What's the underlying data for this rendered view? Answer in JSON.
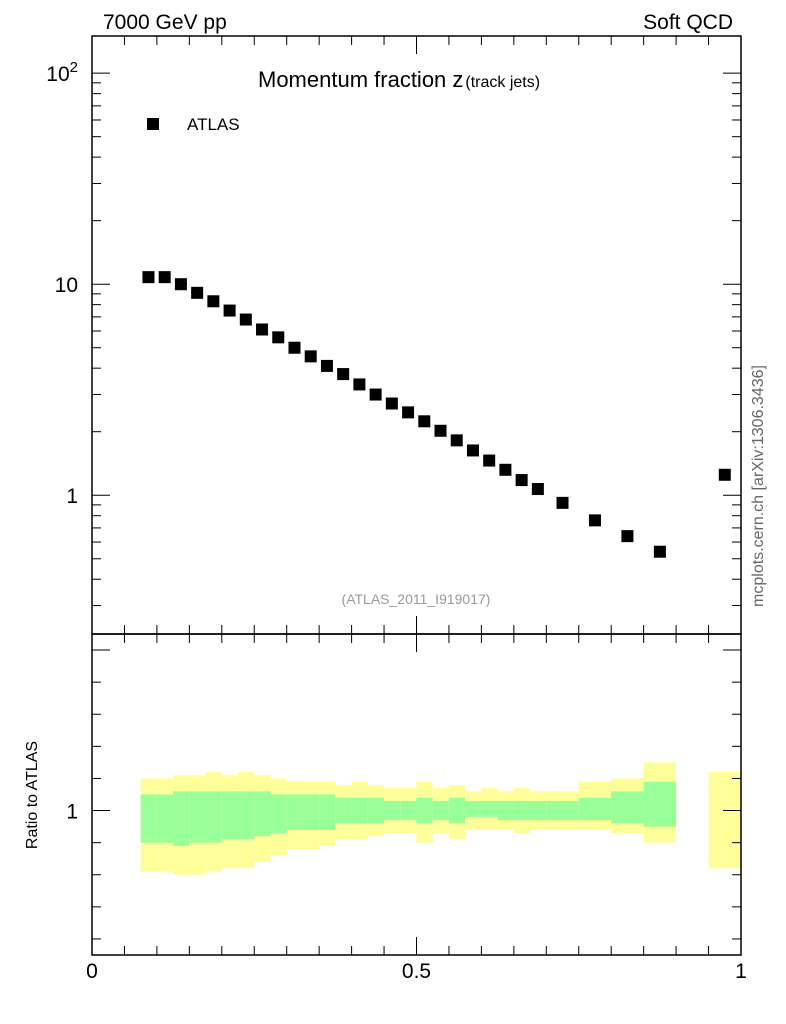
{
  "header": {
    "left": "7000 GeV pp",
    "right": "Soft QCD"
  },
  "side_label": "mcplots.cern.ch [arXiv:1306.3436]",
  "chart_data": [
    {
      "type": "scatter",
      "title_main": "Momentum fraction z",
      "title_sub": "(track jets)",
      "watermark": "(ATLAS_2011_I919017)",
      "legend": {
        "position": "top-left",
        "entries": [
          "ATLAS"
        ]
      },
      "y_scale": "log",
      "ylim": [
        0.22,
        150
      ],
      "xlim": [
        0,
        1
      ],
      "y_ticks": [
        {
          "value": 1,
          "label": "1"
        },
        {
          "value": 10,
          "label": "10"
        },
        {
          "value": 100,
          "label": "10",
          "exp": "2"
        }
      ],
      "series": [
        {
          "name": "ATLAS",
          "x": [
            0.087,
            0.112,
            0.137,
            0.162,
            0.187,
            0.212,
            0.237,
            0.262,
            0.287,
            0.312,
            0.337,
            0.362,
            0.387,
            0.412,
            0.437,
            0.462,
            0.487,
            0.512,
            0.537,
            0.562,
            0.587,
            0.612,
            0.637,
            0.662,
            0.687,
            0.725,
            0.775,
            0.825,
            0.875,
            0.975
          ],
          "y": [
            10.8,
            10.8,
            10.0,
            9.1,
            8.3,
            7.5,
            6.8,
            6.1,
            5.6,
            5.0,
            4.55,
            4.1,
            3.75,
            3.35,
            3.0,
            2.72,
            2.47,
            2.24,
            2.02,
            1.82,
            1.63,
            1.46,
            1.32,
            1.18,
            1.07,
            0.92,
            0.76,
            0.64,
            0.54,
            1.25
          ]
        }
      ]
    },
    {
      "type": "area",
      "ylabel": "Ratio to ATLAS",
      "xlabel": "",
      "xlim": [
        0,
        1
      ],
      "ylim": [
        0.55,
        1.55
      ],
      "x_ticks": [
        {
          "value": 0,
          "label": "0"
        },
        {
          "value": 0.5,
          "label": "0.5"
        },
        {
          "value": 1,
          "label": "1"
        }
      ],
      "y_ticks": [
        {
          "value": 1,
          "label": "1"
        }
      ],
      "band_colors": {
        "stat": "#99ff99",
        "total": "#ffff99"
      },
      "bins": [
        {
          "x0": 0.075,
          "x1": 0.1,
          "total_lo": 0.81,
          "total_hi": 1.1,
          "stat_lo": 0.9,
          "stat_hi": 1.05
        },
        {
          "x0": 0.1,
          "x1": 0.125,
          "total_lo": 0.81,
          "total_hi": 1.1,
          "stat_lo": 0.9,
          "stat_hi": 1.05
        },
        {
          "x0": 0.125,
          "x1": 0.15,
          "total_lo": 0.8,
          "total_hi": 1.11,
          "stat_lo": 0.89,
          "stat_hi": 1.06
        },
        {
          "x0": 0.15,
          "x1": 0.175,
          "total_lo": 0.8,
          "total_hi": 1.11,
          "stat_lo": 0.9,
          "stat_hi": 1.06
        },
        {
          "x0": 0.175,
          "x1": 0.2,
          "total_lo": 0.81,
          "total_hi": 1.12,
          "stat_lo": 0.9,
          "stat_hi": 1.06
        },
        {
          "x0": 0.2,
          "x1": 0.225,
          "total_lo": 0.82,
          "total_hi": 1.11,
          "stat_lo": 0.91,
          "stat_hi": 1.06
        },
        {
          "x0": 0.225,
          "x1": 0.25,
          "total_lo": 0.82,
          "total_hi": 1.12,
          "stat_lo": 0.91,
          "stat_hi": 1.06
        },
        {
          "x0": 0.25,
          "x1": 0.275,
          "total_lo": 0.84,
          "total_hi": 1.11,
          "stat_lo": 0.92,
          "stat_hi": 1.06
        },
        {
          "x0": 0.275,
          "x1": 0.3,
          "total_lo": 0.86,
          "total_hi": 1.1,
          "stat_lo": 0.93,
          "stat_hi": 1.05
        },
        {
          "x0": 0.3,
          "x1": 0.325,
          "total_lo": 0.88,
          "total_hi": 1.09,
          "stat_lo": 0.94,
          "stat_hi": 1.05
        },
        {
          "x0": 0.325,
          "x1": 0.35,
          "total_lo": 0.88,
          "total_hi": 1.09,
          "stat_lo": 0.94,
          "stat_hi": 1.05
        },
        {
          "x0": 0.35,
          "x1": 0.375,
          "total_lo": 0.89,
          "total_hi": 1.09,
          "stat_lo": 0.94,
          "stat_hi": 1.05
        },
        {
          "x0": 0.375,
          "x1": 0.4,
          "total_lo": 0.91,
          "total_hi": 1.08,
          "stat_lo": 0.96,
          "stat_hi": 1.04
        },
        {
          "x0": 0.4,
          "x1": 0.425,
          "total_lo": 0.91,
          "total_hi": 1.09,
          "stat_lo": 0.96,
          "stat_hi": 1.04
        },
        {
          "x0": 0.425,
          "x1": 0.45,
          "total_lo": 0.92,
          "total_hi": 1.08,
          "stat_lo": 0.96,
          "stat_hi": 1.04
        },
        {
          "x0": 0.45,
          "x1": 0.475,
          "total_lo": 0.93,
          "total_hi": 1.07,
          "stat_lo": 0.97,
          "stat_hi": 1.03
        },
        {
          "x0": 0.475,
          "x1": 0.5,
          "total_lo": 0.93,
          "total_hi": 1.07,
          "stat_lo": 0.97,
          "stat_hi": 1.03
        },
        {
          "x0": 0.5,
          "x1": 0.525,
          "total_lo": 0.9,
          "total_hi": 1.09,
          "stat_lo": 0.96,
          "stat_hi": 1.04
        },
        {
          "x0": 0.525,
          "x1": 0.55,
          "total_lo": 0.93,
          "total_hi": 1.07,
          "stat_lo": 0.97,
          "stat_hi": 1.03
        },
        {
          "x0": 0.55,
          "x1": 0.575,
          "total_lo": 0.91,
          "total_hi": 1.08,
          "stat_lo": 0.96,
          "stat_hi": 1.04
        },
        {
          "x0": 0.575,
          "x1": 0.6,
          "total_lo": 0.94,
          "total_hi": 1.06,
          "stat_lo": 0.98,
          "stat_hi": 1.03
        },
        {
          "x0": 0.6,
          "x1": 0.625,
          "total_lo": 0.94,
          "total_hi": 1.07,
          "stat_lo": 0.98,
          "stat_hi": 1.03
        },
        {
          "x0": 0.625,
          "x1": 0.65,
          "total_lo": 0.94,
          "total_hi": 1.06,
          "stat_lo": 0.97,
          "stat_hi": 1.03
        },
        {
          "x0": 0.65,
          "x1": 0.675,
          "total_lo": 0.93,
          "total_hi": 1.07,
          "stat_lo": 0.97,
          "stat_hi": 1.03
        },
        {
          "x0": 0.675,
          "x1": 0.7,
          "total_lo": 0.94,
          "total_hi": 1.06,
          "stat_lo": 0.97,
          "stat_hi": 1.03
        },
        {
          "x0": 0.7,
          "x1": 0.75,
          "total_lo": 0.94,
          "total_hi": 1.06,
          "stat_lo": 0.97,
          "stat_hi": 1.03
        },
        {
          "x0": 0.75,
          "x1": 0.8,
          "total_lo": 0.94,
          "total_hi": 1.09,
          "stat_lo": 0.97,
          "stat_hi": 1.04
        },
        {
          "x0": 0.8,
          "x1": 0.85,
          "total_lo": 0.93,
          "total_hi": 1.1,
          "stat_lo": 0.96,
          "stat_hi": 1.06
        },
        {
          "x0": 0.85,
          "x1": 0.9,
          "total_lo": 0.9,
          "total_hi": 1.15,
          "stat_lo": 0.95,
          "stat_hi": 1.09
        },
        {
          "x0": 0.95,
          "x1": 1.0,
          "total_lo": 0.82,
          "total_hi": 1.12,
          "stat_lo": null,
          "stat_hi": null
        }
      ]
    }
  ]
}
